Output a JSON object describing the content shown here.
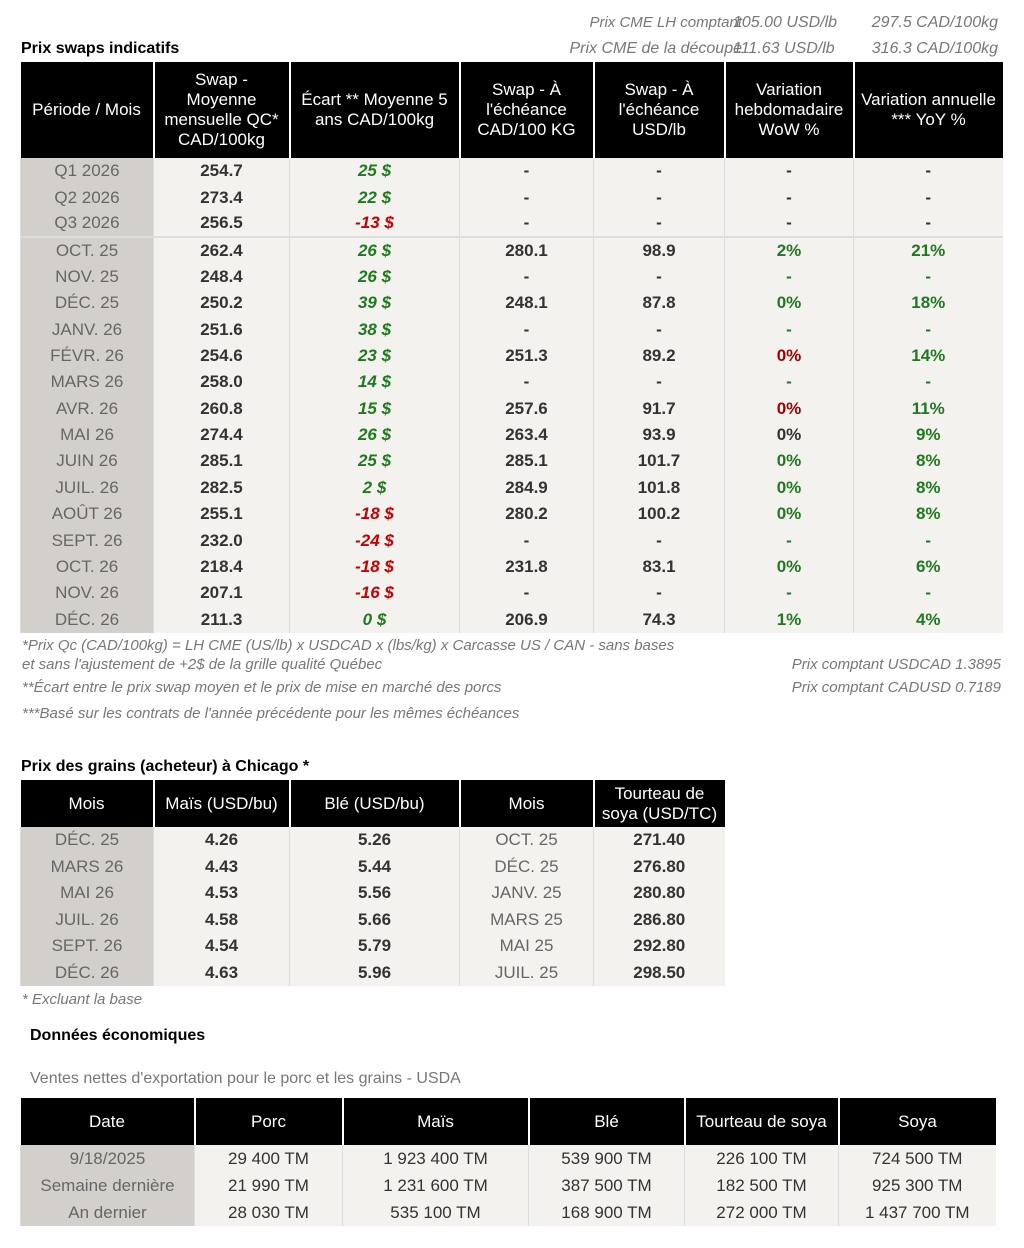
{
  "header": {
    "cme": [
      [
        "Prix CME LH comptant",
        "105.00 USD/lb",
        "297.5 CAD/100kg"
      ],
      [
        "Prix CME de la découpe",
        "111.63 USD/lb",
        "316.3 CAD/100kg"
      ]
    ]
  },
  "swaps": {
    "title": "Prix swaps indicatifs",
    "headers": [
      "Période / Mois",
      "Swap - Moyenne mensuelle QC* CAD/100kg",
      "Écart ** Moyenne 5 ans CAD/100kg",
      "Swap - À l'échéance CAD/100 KG",
      "Swap - À l'échéance USD/lb",
      "Variation hebdomadaire WoW %",
      "Variation annuelle *** YoY %"
    ],
    "rows": [
      [
        "Q1 2026",
        "254.7",
        {
          "text": "25 $",
          "color": "#1f7a1f"
        },
        "-",
        "-",
        "-",
        "-"
      ],
      [
        "Q2 2026",
        "273.4",
        {
          "text": "22 $",
          "color": "#1f7a1f"
        },
        "-",
        "-",
        "-",
        "-"
      ],
      [
        "Q3 2026",
        "256.5",
        {
          "text": "-13 $",
          "color": "#c40000"
        },
        "-",
        "-",
        "-",
        "-"
      ],
      [
        "OCT. 25",
        "262.4",
        {
          "text": "26 $",
          "color": "#1f7a1f"
        },
        "280.1",
        "98.9",
        {
          "text": "2%",
          "color": "#1f7a1f"
        },
        {
          "text": "21%",
          "color": "#1f7a1f"
        }
      ],
      [
        "NOV. 25",
        "248.4",
        {
          "text": "26 $",
          "color": "#1f7a1f"
        },
        "-",
        "-",
        {
          "text": "-",
          "color": "#1f7a1f"
        },
        {
          "text": "-",
          "color": "#1f7a1f"
        }
      ],
      [
        "DÉC. 25",
        "250.2",
        {
          "text": "39 $",
          "color": "#1f7a1f"
        },
        "248.1",
        "87.8",
        {
          "text": "0%",
          "color": "#1f7a1f"
        },
        {
          "text": "18%",
          "color": "#1f7a1f"
        }
      ],
      [
        "JANV. 26",
        "251.6",
        {
          "text": "38 $",
          "color": "#1f7a1f"
        },
        "-",
        "-",
        {
          "text": "-",
          "color": "#1f7a1f"
        },
        {
          "text": "-",
          "color": "#1f7a1f"
        }
      ],
      [
        "FÉVR. 26",
        "254.6",
        {
          "text": "23 $",
          "color": "#1f7a1f"
        },
        "251.3",
        "89.2",
        {
          "text": "0%",
          "color": "#a00000"
        },
        {
          "text": "14%",
          "color": "#1f7a1f"
        }
      ],
      [
        "MARS 26",
        "258.0",
        {
          "text": "14 $",
          "color": "#1f7a1f"
        },
        "-",
        "-",
        {
          "text": "-",
          "color": "#1f7a1f"
        },
        {
          "text": "-",
          "color": "#1f7a1f"
        }
      ],
      [
        "AVR. 26",
        "260.8",
        {
          "text": "15 $",
          "color": "#1f7a1f"
        },
        "257.6",
        "91.7",
        {
          "text": "0%",
          "color": "#a00000"
        },
        {
          "text": "11%",
          "color": "#1f7a1f"
        }
      ],
      [
        "MAI 26",
        "274.4",
        {
          "text": "26 $",
          "color": "#1f7a1f"
        },
        "263.4",
        "93.9",
        "0%",
        {
          "text": "9%",
          "color": "#1f7a1f"
        }
      ],
      [
        "JUIN 26",
        "285.1",
        {
          "text": "25 $",
          "color": "#1f7a1f"
        },
        "285.1",
        "101.7",
        {
          "text": "0%",
          "color": "#1f7a1f"
        },
        {
          "text": "8%",
          "color": "#1f7a1f"
        }
      ],
      [
        "JUIL. 26",
        "282.5",
        {
          "text": "2 $",
          "color": "#1f7a1f"
        },
        "284.9",
        "101.8",
        {
          "text": "0%",
          "color": "#1f7a1f"
        },
        {
          "text": "8%",
          "color": "#1f7a1f"
        }
      ],
      [
        "AOÛT 26",
        "255.1",
        {
          "text": "-18 $",
          "color": "#c40000"
        },
        "280.2",
        "100.2",
        {
          "text": "0%",
          "color": "#1f7a1f"
        },
        {
          "text": "8%",
          "color": "#1f7a1f"
        }
      ],
      [
        "SEPT. 26",
        "232.0",
        {
          "text": "-24 $",
          "color": "#c40000"
        },
        "-",
        "-",
        {
          "text": "-",
          "color": "#1f7a1f"
        },
        {
          "text": "-",
          "color": "#1f7a1f"
        }
      ],
      [
        "OCT. 26",
        "218.4",
        {
          "text": "-18 $",
          "color": "#c40000"
        },
        "231.8",
        "83.1",
        {
          "text": "0%",
          "color": "#1f7a1f"
        },
        {
          "text": "6%",
          "color": "#1f7a1f"
        }
      ],
      [
        "NOV. 26",
        "207.1",
        {
          "text": "-16 $",
          "color": "#c40000"
        },
        "-",
        "-",
        {
          "text": "-",
          "color": "#1f7a1f"
        },
        {
          "text": "-",
          "color": "#1f7a1f"
        }
      ],
      [
        "DÉC. 26",
        "211.3",
        {
          "text": "0 $",
          "color": "#1f7a1f"
        },
        "206.9",
        "74.3",
        {
          "text": "1%",
          "color": "#1f7a1f"
        },
        {
          "text": "4%",
          "color": "#1f7a1f"
        }
      ]
    ],
    "notes_left": [
      "*Prix Qc (CAD/100kg) = LH CME (US/lb) x USDCAD x (lbs/kg) x Carcasse US / CAN - sans bases",
      "et sans l'ajustement de +2$ de la grille qualité Québec",
      "**Écart entre le prix swap moyen et le prix de mise en marché des porcs",
      "***Basé sur les contrats de l'année précédente pour les mêmes échéances"
    ],
    "notes_right": [
      "Prix comptant USDCAD 1.3895",
      "Prix comptant CADUSD 0.7189"
    ]
  },
  "grains": {
    "title": "Prix des grains (acheteur) à Chicago *",
    "headers": [
      "Mois",
      "Maïs (USD/bu)",
      "Blé (USD/bu)",
      "Mois",
      "Tourteau de soya (USD/TC)"
    ],
    "rows": [
      [
        "DÉC. 25",
        "4.26",
        "5.26",
        "OCT. 25",
        "271.40"
      ],
      [
        "MARS 26",
        "4.43",
        "5.44",
        "DÉC. 25",
        "276.80"
      ],
      [
        "MAI 26",
        "4.53",
        "5.56",
        "JANV. 25",
        "280.80"
      ],
      [
        "JUIL. 26",
        "4.58",
        "5.66",
        "MARS 25",
        "286.80"
      ],
      [
        "SEPT. 26",
        "4.54",
        "5.79",
        "MAI 25",
        "292.80"
      ],
      [
        "DÉC. 26",
        "4.63",
        "5.96",
        "JUIL. 25",
        "298.50"
      ]
    ],
    "note": "* Excluant la base"
  },
  "economy": {
    "title": "Données économiques",
    "subtitle": "Ventes nettes d'exportation pour le porc et les grains - USDA",
    "headers": [
      "Date",
      "Porc",
      "Maïs",
      "Blé",
      "Tourteau de soya",
      "Soya"
    ],
    "rows": [
      [
        "9/18/2025",
        "29 400 TM",
        "1 923 400 TM",
        "539 900 TM",
        "226 100 TM",
        "724 500 TM"
      ],
      [
        "Semaine dernière",
        "21 990 TM",
        "1 231 600 TM",
        "387 500 TM",
        "182 500 TM",
        "925 300 TM"
      ],
      [
        "An dernier",
        "28 030 TM",
        "535 100 TM",
        "168 900 TM",
        "272 000 TM",
        "1 437 700 TM"
      ]
    ]
  }
}
